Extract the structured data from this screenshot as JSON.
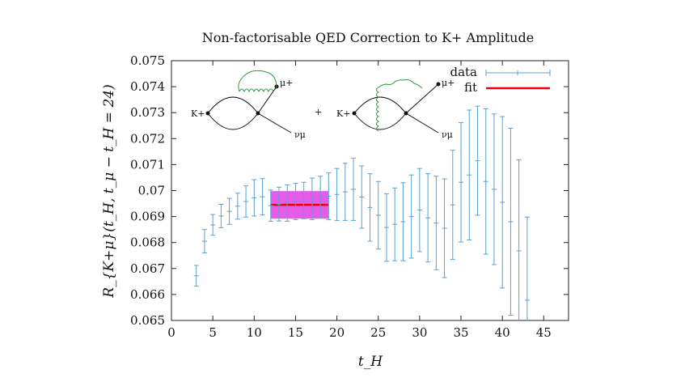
{
  "chart_data": {
    "type": "scatter",
    "title_text": "Non-factorisable QED Correction to K+ Amplitude",
    "xlabel": "t_H",
    "ylabel": "R_{K+μ}(t_H, t_μ − t_H = 24)",
    "xlim": [
      0,
      48
    ],
    "ylim": [
      0.065,
      0.075
    ],
    "xticks": [
      "0",
      "5",
      "10",
      "15",
      "20",
      "25",
      "30",
      "35",
      "40",
      "45"
    ],
    "xtick_values": [
      0,
      5,
      10,
      15,
      20,
      25,
      30,
      35,
      40,
      45
    ],
    "yticks": [
      "0.065",
      "0.066",
      "0.067",
      "0.068",
      "0.069",
      "0.07",
      "0.071",
      "0.072",
      "0.073",
      "0.074",
      "0.075"
    ],
    "ytick_values": [
      0.065,
      0.066,
      0.067,
      0.068,
      0.069,
      0.07,
      0.071,
      0.072,
      0.073,
      0.074,
      0.075
    ],
    "legend": {
      "data_label": "data",
      "fit_label": "fit",
      "position": "top-right"
    },
    "series": [
      {
        "name": "data",
        "x": [
          3,
          4,
          5,
          6,
          7,
          8,
          9,
          10,
          11,
          12,
          13,
          14,
          15,
          16,
          17,
          18,
          19,
          20,
          21,
          22,
          23,
          24,
          25,
          26,
          27,
          28,
          29,
          30,
          31,
          32,
          33,
          34,
          35,
          36,
          37,
          38,
          39,
          40,
          41,
          42,
          43
        ],
        "y": [
          0.06672,
          0.06805,
          0.06868,
          0.06902,
          0.0692,
          0.0694,
          0.06958,
          0.06972,
          0.06976,
          0.06942,
          0.06948,
          0.06952,
          0.06958,
          0.06962,
          0.06968,
          0.06975,
          0.06978,
          0.06985,
          0.06995,
          0.07005,
          0.06975,
          0.06935,
          0.06905,
          0.06858,
          0.0687,
          0.0688,
          0.069,
          0.06925,
          0.06895,
          0.06875,
          0.06855,
          0.06945,
          0.07032,
          0.0706,
          0.07115,
          0.07035,
          0.07005,
          0.06955,
          0.0688,
          0.06768,
          0.06578
        ],
        "err": [
          0.0004,
          0.00045,
          0.0004,
          0.00045,
          0.0005,
          0.0005,
          0.0006,
          0.0007,
          0.0007,
          0.0006,
          0.00065,
          0.0007,
          0.0007,
          0.0007,
          0.0008,
          0.0008,
          0.0009,
          0.001,
          0.0011,
          0.0012,
          0.0012,
          0.0013,
          0.0013,
          0.0013,
          0.0014,
          0.0015,
          0.0016,
          0.0016,
          0.0017,
          0.0018,
          0.0019,
          0.0021,
          0.0023,
          0.0025,
          0.0021,
          0.0028,
          0.0029,
          0.0033,
          0.0036,
          0.0035,
          0.0032
        ]
      }
    ],
    "fit": {
      "x_range": [
        12,
        19
      ],
      "value": 0.06945,
      "err": 0.00053
    },
    "colors": {
      "data": "#5aa0d0",
      "fit": "#e8000a",
      "band": "#e040e8"
    },
    "diagram_labels": {
      "kaon": "K+",
      "muon": "μ+",
      "neutrino": "νμ",
      "plus": "+"
    }
  }
}
